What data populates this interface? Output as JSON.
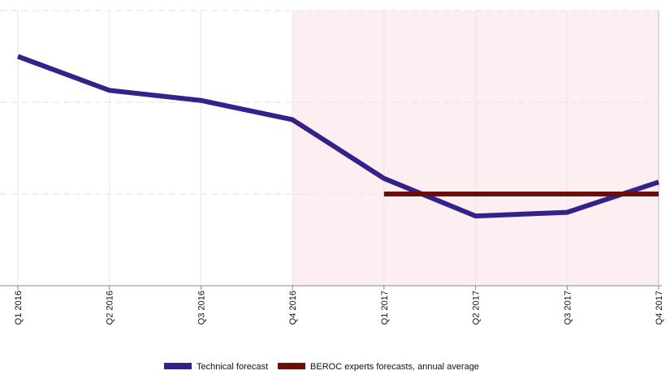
{
  "chart_data": {
    "type": "line",
    "categories": [
      "Q1 2016",
      "Q2 2016",
      "Q3 2016",
      "Q4 2016",
      "Q1 2017",
      "Q2 2017",
      "Q3 2017",
      "Q4 2017"
    ],
    "series": [
      {
        "name": "Technical forecast",
        "color": "#35218a",
        "values": [
          2.5,
          2.13,
          2.02,
          1.81,
          1.17,
          0.76,
          0.8,
          1.13
        ]
      },
      {
        "name": "BEROC experts forecasts, annual average",
        "color": "#6b0f06",
        "values": [
          null,
          null,
          null,
          null,
          1.0,
          1.0,
          1.0,
          1.0
        ]
      }
    ],
    "ylim": [
      0,
      3
    ],
    "yticks": [
      0,
      1,
      2,
      3
    ],
    "grid": true
  }
}
